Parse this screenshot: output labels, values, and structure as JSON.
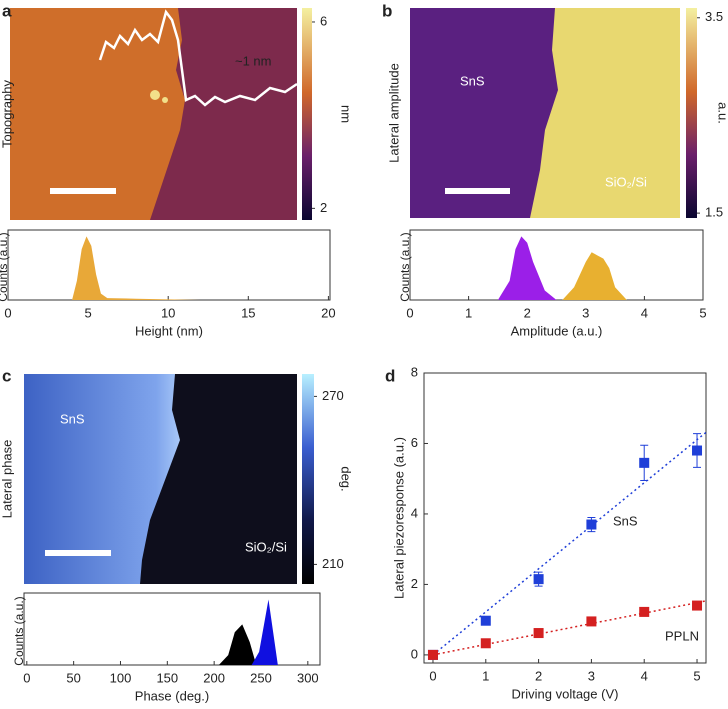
{
  "chart_data": [
    {
      "type": "image",
      "label": "a",
      "ylabel": "Topography",
      "colorbar_label": "nm",
      "clim": [
        1.75,
        6.3
      ],
      "cticks": [
        2,
        6
      ],
      "annotations": [
        "~1 nm"
      ]
    },
    {
      "type": "area",
      "xlabel": "Height (nm)",
      "ylabel": "Counts (a.u.)",
      "xlim": [
        0,
        20.1
      ],
      "xticks": [
        0,
        5,
        10,
        15,
        20
      ],
      "ylim": [
        0,
        1.1
      ],
      "series": [
        {
          "color": "#e8a838",
          "x": [
            4,
            4.3,
            4.6,
            4.9,
            5.2,
            5.5,
            5.8,
            6.2,
            8,
            10,
            12
          ],
          "values": [
            0,
            0.3,
            0.8,
            1,
            0.85,
            0.4,
            0.1,
            0.03,
            0.02,
            0.01,
            0
          ]
        }
      ]
    },
    {
      "type": "image",
      "label": "b",
      "ylabel": "Lateral amplitude",
      "colorbar_label": "a.u.",
      "clim": [
        1.45,
        3.6
      ],
      "cticks": [
        1.5,
        3.5
      ],
      "annotations": [
        "SnS",
        "SiO₂/Si"
      ]
    },
    {
      "type": "area",
      "xlabel": "Amplitude (a.u.)",
      "ylabel": "Counts (a.u.)",
      "xlim": [
        0,
        5
      ],
      "xticks": [
        0,
        1,
        2,
        3,
        4,
        5
      ],
      "ylim": [
        0,
        1.1
      ],
      "series": [
        {
          "color": "#9b1fe8",
          "x": [
            1.5,
            1.7,
            1.8,
            1.9,
            2.0,
            2.1,
            2.3,
            2.5
          ],
          "values": [
            0,
            0.3,
            0.8,
            1,
            0.9,
            0.6,
            0.15,
            0
          ]
        },
        {
          "color": "#e8b030",
          "x": [
            2.6,
            2.8,
            3.0,
            3.1,
            3.2,
            3.3,
            3.4,
            3.5,
            3.7
          ],
          "values": [
            0,
            0.2,
            0.6,
            0.75,
            0.7,
            0.65,
            0.5,
            0.2,
            0
          ]
        }
      ]
    },
    {
      "type": "image",
      "label": "c",
      "ylabel": "Lateral phase",
      "colorbar_label": "deg.",
      "clim": [
        203,
        278
      ],
      "cticks": [
        210,
        270
      ],
      "annotations": [
        "SnS",
        "SiO₂/Si"
      ]
    },
    {
      "type": "area",
      "xlabel": "Phase (deg.)",
      "ylabel": "Counts (a.u.)",
      "xlim": [
        -3,
        313
      ],
      "xticks": [
        0,
        50,
        100,
        150,
        200,
        250,
        300
      ],
      "ylim": [
        0,
        1.1
      ],
      "series": [
        {
          "color": "#000000",
          "x": [
            205,
            215,
            222,
            230,
            238,
            245
          ],
          "values": [
            0,
            0.15,
            0.5,
            0.62,
            0.35,
            0
          ]
        },
        {
          "color": "#1010e0",
          "x": [
            240,
            248,
            253,
            258,
            263,
            268
          ],
          "values": [
            0,
            0.2,
            0.6,
            1,
            0.5,
            0
          ]
        }
      ]
    },
    {
      "type": "scatter",
      "label": "d",
      "xlabel": "Driving voltage (V)",
      "ylabel": "Lateral piezoresponse (a.u.)",
      "xlim": [
        -0.17,
        5.17
      ],
      "xticks": [
        0,
        1,
        2,
        3,
        4,
        5
      ],
      "ylim": [
        -0.23,
        8
      ],
      "yticks": [
        0,
        2,
        4,
        6,
        8
      ],
      "fit": true,
      "series": [
        {
          "name": "SnS",
          "color": "#1f3fd8",
          "x": [
            0,
            1,
            2,
            3,
            4,
            5
          ],
          "values": [
            0,
            0.97,
            2.15,
            3.7,
            5.45,
            5.8
          ],
          "errors": [
            0.05,
            0.1,
            0.2,
            0.2,
            0.5,
            0.48
          ]
        },
        {
          "name": "PPLN",
          "color": "#d42020",
          "x": [
            0,
            1,
            2,
            3,
            4,
            5
          ],
          "values": [
            0,
            0.33,
            0.62,
            0.95,
            1.22,
            1.4
          ]
        }
      ]
    }
  ]
}
